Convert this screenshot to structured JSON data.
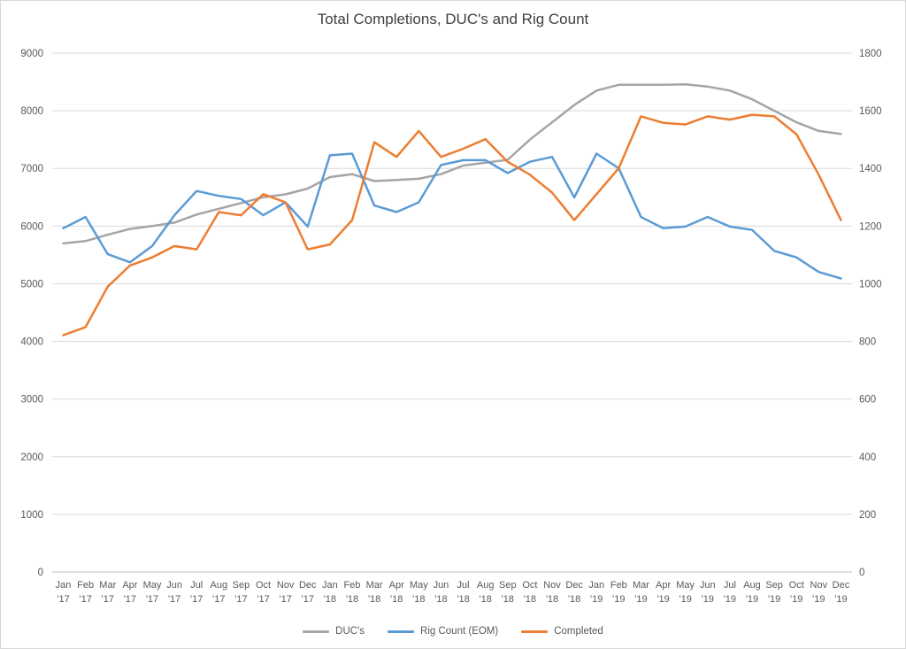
{
  "chart_data": {
    "type": "line",
    "title": "Total Completions, DUC's and Rig Count",
    "legend_position": "bottom",
    "grid": true,
    "categories": [
      "Jan '17",
      "Feb '17",
      "Mar '17",
      "Apr '17",
      "May '17",
      "Jun '17",
      "Jul '17",
      "Aug '17",
      "Sep '17",
      "Oct '17",
      "Nov '17",
      "Dec '17",
      "Jan '18",
      "Feb '18",
      "Mar '18",
      "Apr '18",
      "May '18",
      "Jun '18",
      "Jul '18",
      "Aug '18",
      "Sep '18",
      "Oct '18",
      "Nov '18",
      "Dec '18",
      "Jan '19",
      "Feb '19",
      "Mar '19",
      "Apr '19",
      "May '19",
      "Jun '19",
      "Jul '19",
      "Aug '19",
      "Sep '19",
      "Oct '19",
      "Nov '19",
      "Dec '19"
    ],
    "left_axis": {
      "min": 0,
      "max": 9000,
      "step": 1000
    },
    "right_axis": {
      "min": 0,
      "max": 1600,
      "step": 200
    },
    "series": [
      {
        "name": "DUC's",
        "axis": "left",
        "color": "#a5a5a5",
        "values": [
          5700,
          5740,
          5850,
          5950,
          6000,
          6060,
          6200,
          6300,
          6400,
          6500,
          6550,
          6650,
          6850,
          6900,
          6780,
          6800,
          6820,
          6900,
          7050,
          7100,
          7150,
          7500,
          7800,
          8100,
          8350,
          8450,
          8450,
          8450,
          8460,
          8420,
          8350,
          8200,
          8000,
          7800,
          7650,
          7600
        ]
      },
      {
        "name": "Rig Count (EOM)",
        "axis": "right",
        "color": "#5b9bd5",
        "values": [
          1060,
          1095,
          980,
          955,
          1005,
          1100,
          1175,
          1160,
          1150,
          1100,
          1140,
          1065,
          1285,
          1290,
          1130,
          1110,
          1140,
          1255,
          1270,
          1270,
          1230,
          1265,
          1280,
          1155,
          1290,
          1245,
          1095,
          1060,
          1065,
          1095,
          1065,
          1055,
          990,
          970,
          925,
          905
        ]
      },
      {
        "name": "Completed",
        "axis": "right",
        "color": "#ed7d31",
        "values": [
          730,
          755,
          880,
          945,
          970,
          1005,
          995,
          1110,
          1100,
          1165,
          1140,
          995,
          1010,
          1085,
          1325,
          1280,
          1360,
          1280,
          1305,
          1335,
          1265,
          1225,
          1170,
          1085,
          1165,
          1245,
          1405,
          1385,
          1380,
          1405,
          1395,
          1410,
          1405,
          1350,
          1225,
          1085
        ]
      }
    ]
  },
  "styles": {
    "background": "#ffffff",
    "grid_color": "#d9d9d9",
    "axis_line_color": "#bfbfbf",
    "tick_text_color": "#595959",
    "title_color": "#404040"
  }
}
